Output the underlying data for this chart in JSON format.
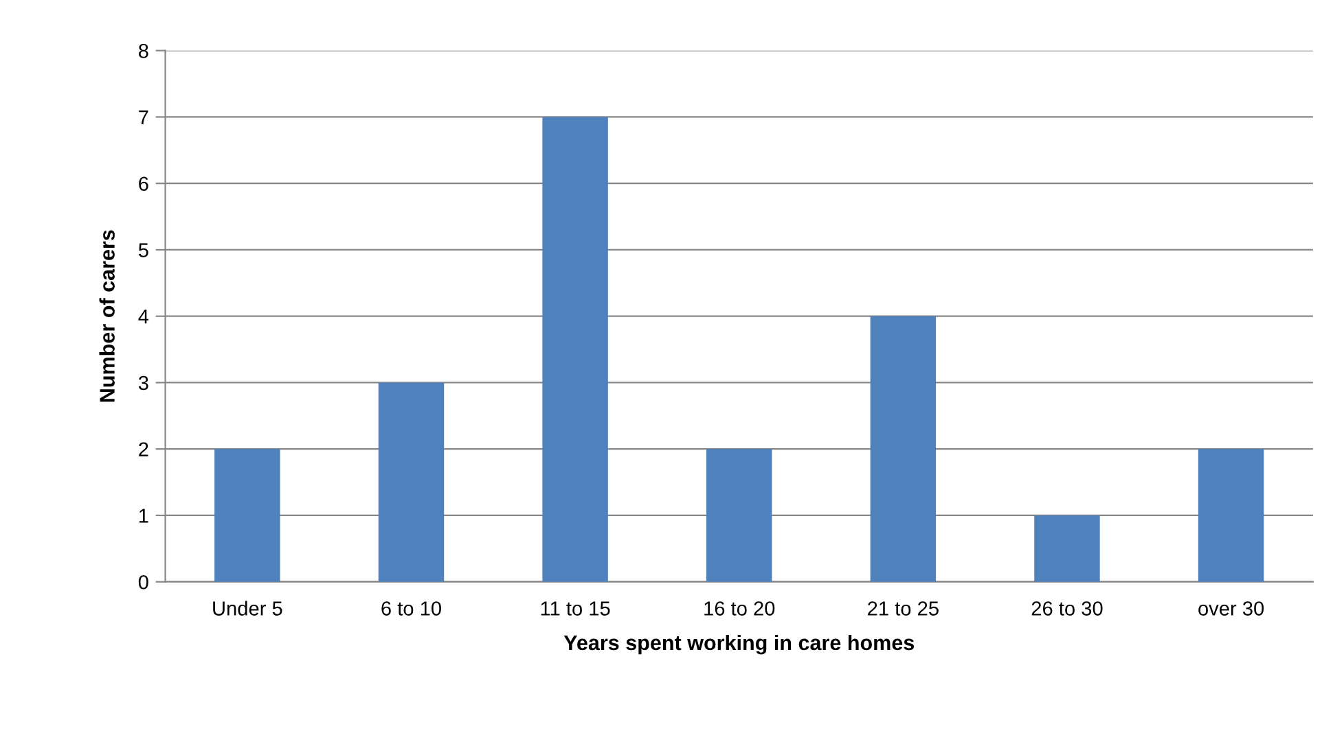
{
  "chart_data": {
    "type": "bar",
    "xlabel": "Years spent working in care homes",
    "ylabel": "Number of carers",
    "categories": [
      "Under 5",
      "6 to 10",
      "11 to 15",
      "16 to 20",
      "21 to 25",
      "26 to 30",
      "over 30"
    ],
    "values": [
      2,
      3,
      7,
      2,
      4,
      1,
      2
    ],
    "color": "#4f81bd",
    "ylim": [
      0,
      8
    ],
    "yticks": [
      0,
      1,
      2,
      3,
      4,
      5,
      6,
      7,
      8
    ],
    "grid": "y",
    "legend": false
  }
}
